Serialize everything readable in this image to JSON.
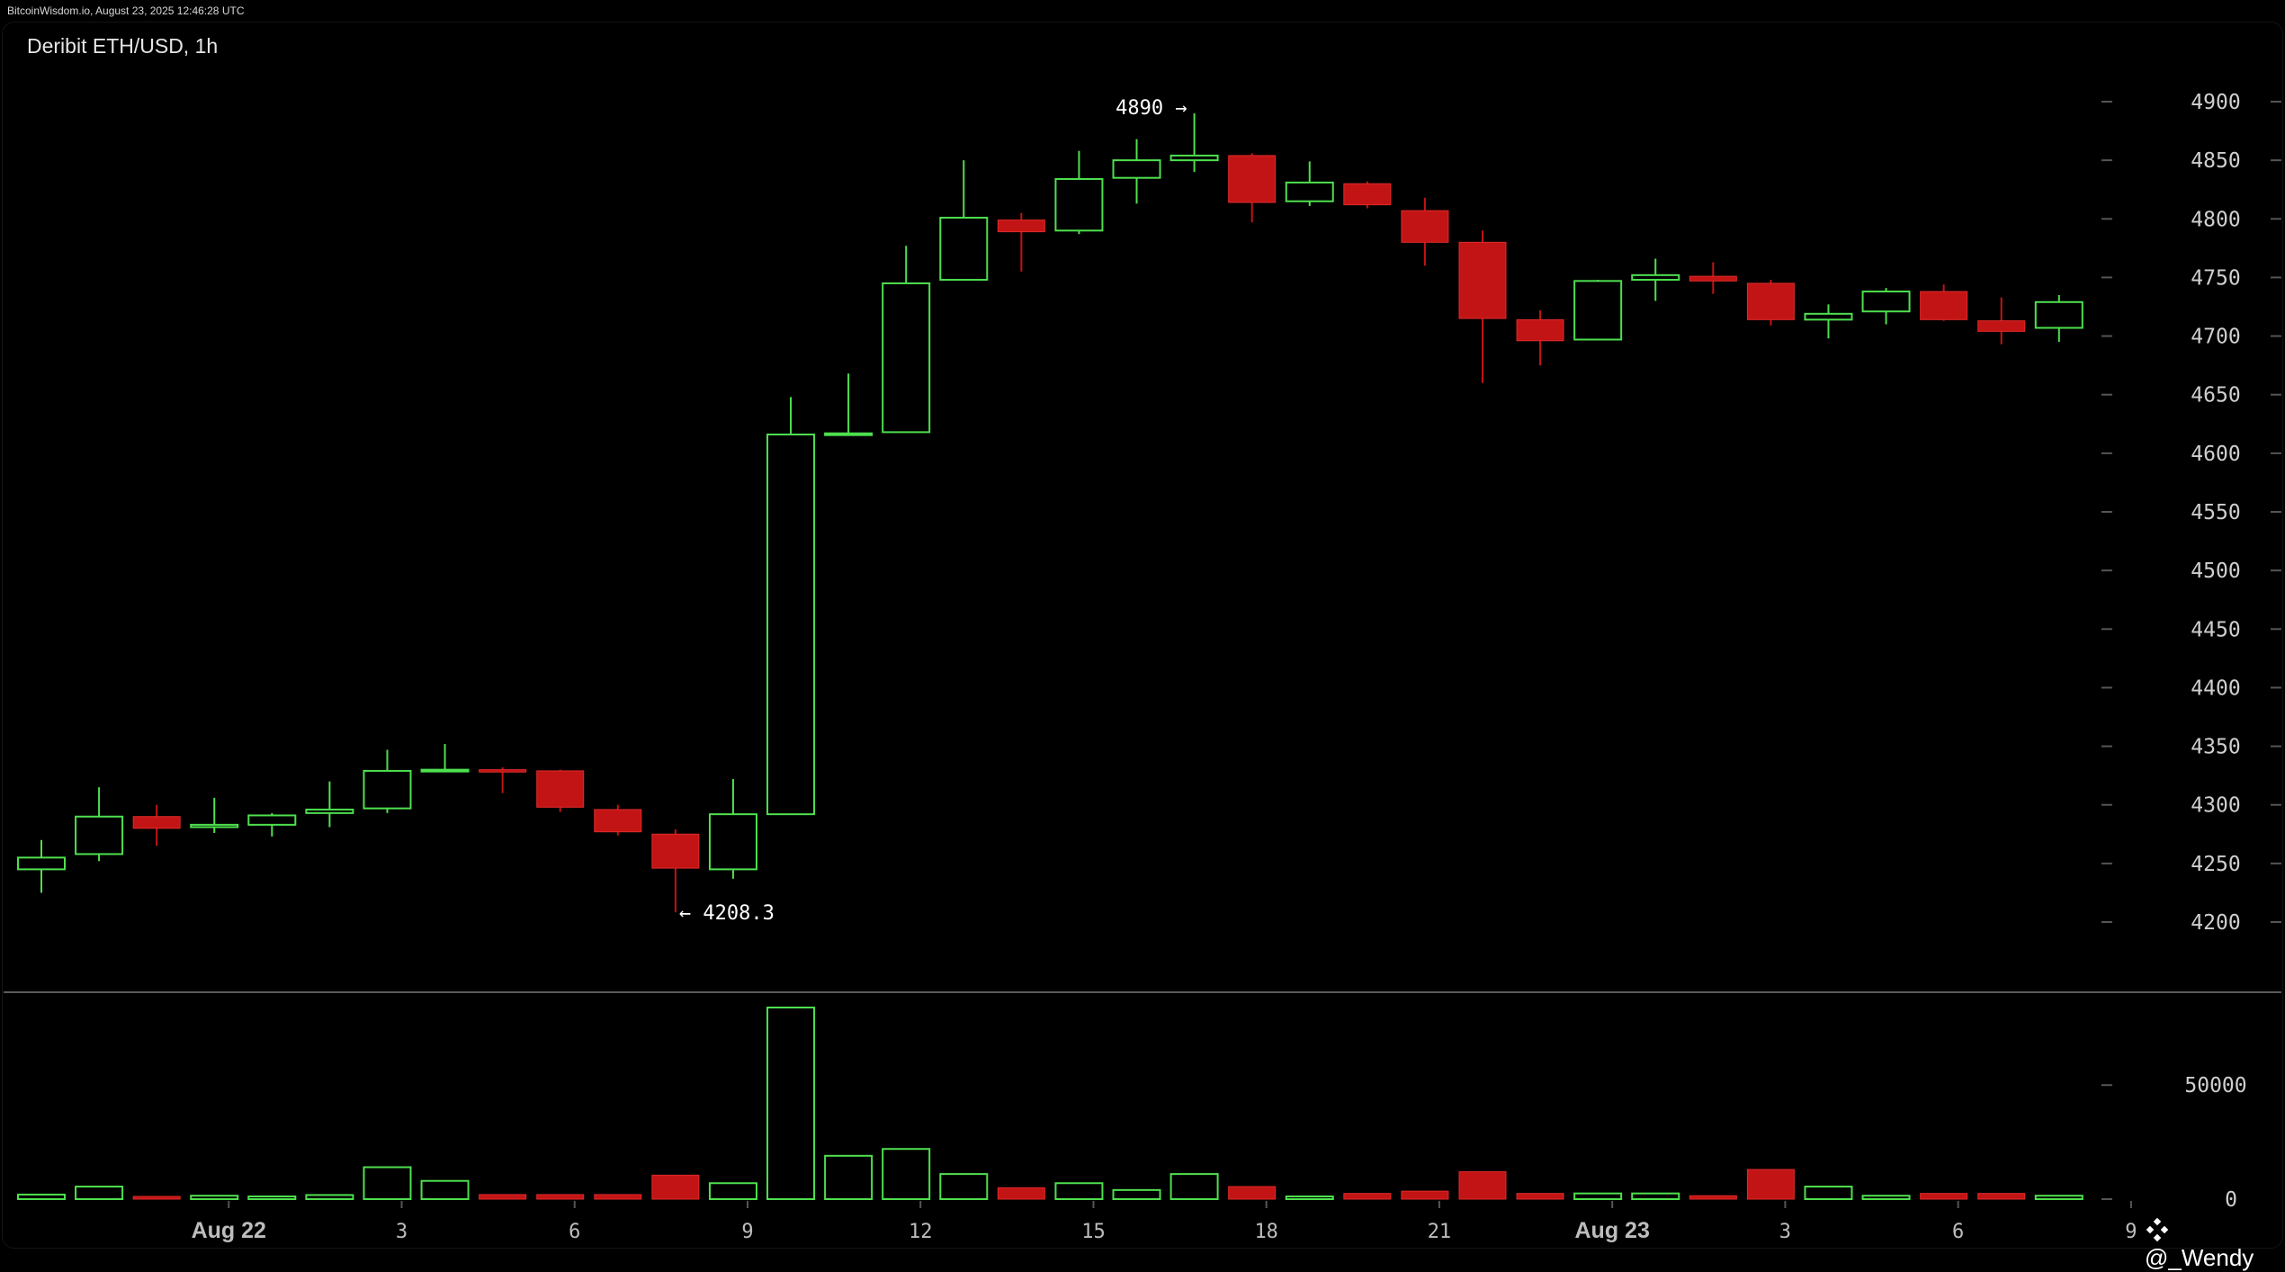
{
  "header": {
    "source_line": "BitcoinWisdom.io, August 23, 2025 12:46:28 UTC"
  },
  "watermark": {
    "text": "@_Wendy",
    "icon": "binance-diamond-icon"
  },
  "colors": {
    "up": "#4ee04e",
    "down": "#c21414",
    "background": "#000000",
    "grid_tick": "#555555"
  },
  "chart_data": {
    "type": "candlestick",
    "title": "Deribit ETH/USD, 1h",
    "price_axis": {
      "ylim": [
        4150,
        4930
      ],
      "ticks": [
        4200,
        4250,
        4300,
        4350,
        4400,
        4450,
        4500,
        4550,
        4600,
        4650,
        4700,
        4750,
        4800,
        4850,
        4900
      ]
    },
    "volume_axis": {
      "ylim": [
        0,
        84000
      ],
      "ticks": [
        0,
        50000
      ]
    },
    "x_axis": {
      "labels": [
        {
          "label": "Aug 22",
          "index": 3.25,
          "bold": true
        },
        {
          "label": "3",
          "index": 6.25
        },
        {
          "label": "6",
          "index": 9.25
        },
        {
          "label": "9",
          "index": 12.25
        },
        {
          "label": "12",
          "index": 15.25
        },
        {
          "label": "15",
          "index": 18.25
        },
        {
          "label": "18",
          "index": 21.25
        },
        {
          "label": "21",
          "index": 24.25
        },
        {
          "label": "Aug 23",
          "index": 27.25,
          "bold": true
        },
        {
          "label": "3",
          "index": 30.25
        },
        {
          "label": "6",
          "index": 33.25
        },
        {
          "label": "9",
          "index": 36.25
        }
      ]
    },
    "annotations": {
      "high": {
        "text": "4890 →",
        "value": 4890,
        "index": 20
      },
      "low": {
        "text": "← 4208.3",
        "value": 4208.3,
        "index": 11
      }
    },
    "candles": [
      {
        "o": 4245,
        "h": 4270,
        "l": 4225,
        "c": 4255,
        "v": 2000
      },
      {
        "o": 4258,
        "h": 4315,
        "l": 4252,
        "c": 4290,
        "v": 5500
      },
      {
        "o": 4290,
        "h": 4300,
        "l": 4265,
        "c": 4280,
        "v": 1000
      },
      {
        "o": 4281,
        "h": 4306,
        "l": 4276,
        "c": 4283,
        "v": 1500
      },
      {
        "o": 4283,
        "h": 4293,
        "l": 4273,
        "c": 4291,
        "v": 800
      },
      {
        "o": 4293,
        "h": 4320,
        "l": 4281,
        "c": 4296,
        "v": 1800
      },
      {
        "o": 4297,
        "h": 4347,
        "l": 4293,
        "c": 4329,
        "v": 14000
      },
      {
        "o": 4329,
        "h": 4352,
        "l": 4329,
        "c": 4330,
        "v": 8000
      },
      {
        "o": 4330,
        "h": 4332,
        "l": 4310,
        "c": 4328,
        "v": 2000
      },
      {
        "o": 4329,
        "h": 4330,
        "l": 4294,
        "c": 4298,
        "v": 2000
      },
      {
        "o": 4296,
        "h": 4300,
        "l": 4274,
        "c": 4277,
        "v": 2000
      },
      {
        "o": 4275,
        "h": 4279,
        "l": 4208.3,
        "c": 4246,
        "v": 10500
      },
      {
        "o": 4245,
        "h": 4322,
        "l": 4237,
        "c": 4292,
        "v": 7000
      },
      {
        "o": 4292,
        "h": 4648,
        "l": 4292,
        "c": 4616,
        "v": 84000
      },
      {
        "o": 4616,
        "h": 4668,
        "l": 4616,
        "c": 4617,
        "v": 19000
      },
      {
        "o": 4618,
        "h": 4777,
        "l": 4618,
        "c": 4745,
        "v": 22000
      },
      {
        "o": 4748,
        "h": 4850,
        "l": 4748,
        "c": 4801,
        "v": 11000
      },
      {
        "o": 4799,
        "h": 4805,
        "l": 4755,
        "c": 4789,
        "v": 5000
      },
      {
        "o": 4790,
        "h": 4858,
        "l": 4787,
        "c": 4834,
        "v": 7000
      },
      {
        "o": 4835,
        "h": 4868,
        "l": 4813,
        "c": 4850,
        "v": 4000
      },
      {
        "o": 4850,
        "h": 4890,
        "l": 4840,
        "c": 4854,
        "v": 11000
      },
      {
        "o": 4854,
        "h": 4856,
        "l": 4797,
        "c": 4814,
        "v": 5500
      },
      {
        "o": 4815,
        "h": 4849,
        "l": 4811,
        "c": 4831,
        "v": 1000
      },
      {
        "o": 4830,
        "h": 4832,
        "l": 4809,
        "c": 4812,
        "v": 2500
      },
      {
        "o": 4807,
        "h": 4818,
        "l": 4760,
        "c": 4780,
        "v": 3500
      },
      {
        "o": 4780,
        "h": 4790,
        "l": 4660,
        "c": 4715,
        "v": 12000
      },
      {
        "o": 4714,
        "h": 4722,
        "l": 4675,
        "c": 4696,
        "v": 2500
      },
      {
        "o": 4697,
        "h": 4748,
        "l": 4697,
        "c": 4747,
        "v": 2500
      },
      {
        "o": 4748,
        "h": 4766,
        "l": 4730,
        "c": 4752,
        "v": 2500
      },
      {
        "o": 4751,
        "h": 4763,
        "l": 4736,
        "c": 4747,
        "v": 1500
      },
      {
        "o": 4745,
        "h": 4748,
        "l": 4709,
        "c": 4714,
        "v": 13000
      },
      {
        "o": 4714,
        "h": 4727,
        "l": 4698,
        "c": 4719,
        "v": 5500
      },
      {
        "o": 4721,
        "h": 4741,
        "l": 4710,
        "c": 4738,
        "v": 1500
      },
      {
        "o": 4738,
        "h": 4744,
        "l": 4713,
        "c": 4714,
        "v": 2500
      },
      {
        "o": 4713,
        "h": 4733,
        "l": 4693,
        "c": 4704,
        "v": 2500
      },
      {
        "o": 4707,
        "h": 4735,
        "l": 4695,
        "c": 4729,
        "v": 1500
      }
    ]
  }
}
